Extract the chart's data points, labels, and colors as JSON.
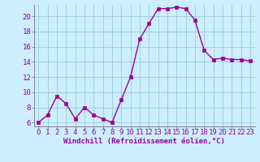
{
  "x": [
    0,
    1,
    2,
    3,
    4,
    5,
    6,
    7,
    8,
    9,
    10,
    11,
    12,
    13,
    14,
    15,
    16,
    17,
    18,
    19,
    20,
    21,
    22,
    23
  ],
  "y": [
    6.0,
    7.0,
    9.5,
    8.5,
    6.5,
    8.0,
    7.0,
    6.5,
    6.0,
    9.0,
    12.0,
    17.0,
    19.0,
    21.0,
    21.0,
    21.2,
    21.0,
    19.5,
    15.5,
    14.3,
    14.5,
    14.3,
    14.3,
    14.1
  ],
  "line_color": "#990099",
  "marker_color": "#990099",
  "bg_color": "#cceeff",
  "grid_color": "#99cccc",
  "xlabel": "Windchill (Refroidissement éolien,°C)",
  "ylim": [
    5.5,
    21.5
  ],
  "xlim": [
    -0.5,
    23.5
  ],
  "yticks": [
    6,
    8,
    10,
    12,
    14,
    16,
    18,
    20
  ],
  "xticks": [
    0,
    1,
    2,
    3,
    4,
    5,
    6,
    7,
    8,
    9,
    10,
    11,
    12,
    13,
    14,
    15,
    16,
    17,
    18,
    19,
    20,
    21,
    22,
    23
  ],
  "xlabel_fontsize": 6.5,
  "tick_fontsize": 6.5,
  "line_width": 1.0,
  "marker_size": 2.5
}
